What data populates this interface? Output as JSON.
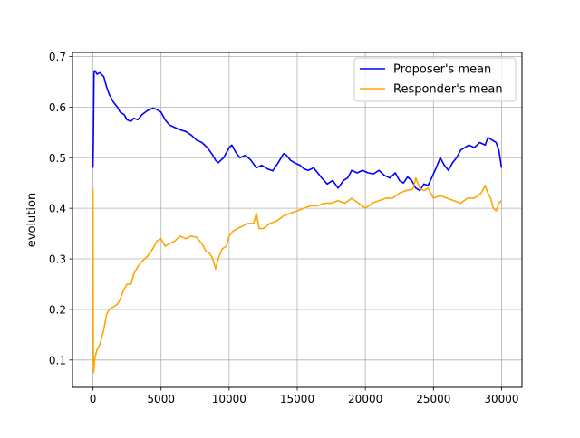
{
  "chart_data": {
    "type": "line",
    "title": "",
    "xlabel": "",
    "ylabel": "evolution",
    "xlim": [
      -1500,
      31500
    ],
    "ylim": [
      0.046,
      0.708
    ],
    "x_ticks": [
      0,
      5000,
      10000,
      15000,
      20000,
      25000,
      30000
    ],
    "x_tick_labels": [
      "0",
      "5000",
      "10000",
      "15000",
      "20000",
      "25000",
      "30000"
    ],
    "y_ticks": [
      0.1,
      0.2,
      0.3,
      0.4,
      0.5,
      0.6,
      0.7
    ],
    "y_tick_labels": [
      "0.1",
      "0.2",
      "0.3",
      "0.4",
      "0.5",
      "0.6",
      "0.7"
    ],
    "grid": true,
    "legend_position": "top-right",
    "series": [
      {
        "name": "Proposer's mean",
        "color": "#0000ff",
        "x": [
          0,
          30,
          80,
          150,
          300,
          500,
          800,
          1000,
          1200,
          1500,
          1800,
          2000,
          2300,
          2500,
          2800,
          3000,
          3300,
          3600,
          4000,
          4400,
          4700,
          5000,
          5300,
          5600,
          6000,
          6400,
          6800,
          7200,
          7600,
          8000,
          8400,
          8800,
          9000,
          9200,
          9600,
          10000,
          10200,
          10500,
          10800,
          11200,
          11600,
          12000,
          12400,
          12800,
          13200,
          13600,
          14000,
          14200,
          14500,
          14800,
          15200,
          15500,
          15800,
          16200,
          16500,
          16800,
          17200,
          17600,
          18000,
          18400,
          18700,
          19000,
          19400,
          19800,
          20200,
          20600,
          21000,
          21400,
          21800,
          22200,
          22500,
          22800,
          23100,
          23400,
          23700,
          24000,
          24300,
          24600,
          24900,
          25200,
          25500,
          25800,
          26100,
          26400,
          26700,
          27000,
          27300,
          27600,
          28000,
          28400,
          28800,
          29000,
          29300,
          29600,
          29800,
          30000
        ],
        "values": [
          0.48,
          0.53,
          0.67,
          0.672,
          0.665,
          0.668,
          0.66,
          0.64,
          0.625,
          0.61,
          0.6,
          0.59,
          0.585,
          0.575,
          0.572,
          0.578,
          0.575,
          0.585,
          0.593,
          0.598,
          0.595,
          0.59,
          0.575,
          0.565,
          0.56,
          0.555,
          0.552,
          0.545,
          0.535,
          0.53,
          0.52,
          0.505,
          0.495,
          0.49,
          0.5,
          0.52,
          0.525,
          0.51,
          0.5,
          0.505,
          0.495,
          0.48,
          0.485,
          0.478,
          0.474,
          0.49,
          0.508,
          0.505,
          0.495,
          0.49,
          0.485,
          0.478,
          0.475,
          0.48,
          0.47,
          0.46,
          0.448,
          0.455,
          0.44,
          0.455,
          0.46,
          0.475,
          0.47,
          0.475,
          0.47,
          0.468,
          0.475,
          0.465,
          0.46,
          0.47,
          0.455,
          0.45,
          0.462,
          0.455,
          0.44,
          0.435,
          0.448,
          0.445,
          0.462,
          0.48,
          0.5,
          0.485,
          0.475,
          0.49,
          0.5,
          0.515,
          0.52,
          0.525,
          0.52,
          0.53,
          0.525,
          0.54,
          0.535,
          0.53,
          0.515,
          0.48
        ]
      },
      {
        "name": "Responder's mean",
        "color": "#ffa500",
        "x": [
          0,
          10,
          30,
          60,
          120,
          200,
          300,
          500,
          800,
          1000,
          1200,
          1500,
          1800,
          2000,
          2200,
          2500,
          2800,
          3000,
          3300,
          3600,
          4000,
          4400,
          4700,
          5000,
          5300,
          5600,
          6000,
          6400,
          6800,
          7200,
          7600,
          8000,
          8300,
          8600,
          8800,
          9000,
          9200,
          9500,
          9800,
          10000,
          10300,
          10600,
          11000,
          11400,
          11800,
          12000,
          12200,
          12500,
          13000,
          13500,
          14000,
          14500,
          15000,
          15500,
          16000,
          16500,
          17000,
          17500,
          18000,
          18500,
          19000,
          19500,
          20000,
          20500,
          21000,
          21500,
          22000,
          22500,
          23000,
          23500,
          23700,
          24000,
          24300,
          24600,
          25000,
          25500,
          26000,
          26500,
          27000,
          27500,
          28000,
          28500,
          28800,
          29000,
          29200,
          29400,
          29600,
          29800,
          30000
        ],
        "values": [
          0.44,
          0.33,
          0.09,
          0.075,
          0.1,
          0.11,
          0.12,
          0.13,
          0.16,
          0.19,
          0.2,
          0.205,
          0.21,
          0.22,
          0.235,
          0.25,
          0.25,
          0.27,
          0.285,
          0.295,
          0.305,
          0.32,
          0.335,
          0.34,
          0.325,
          0.33,
          0.335,
          0.345,
          0.34,
          0.345,
          0.343,
          0.33,
          0.315,
          0.31,
          0.3,
          0.28,
          0.3,
          0.32,
          0.325,
          0.345,
          0.355,
          0.36,
          0.365,
          0.37,
          0.37,
          0.39,
          0.36,
          0.36,
          0.37,
          0.375,
          0.385,
          0.39,
          0.395,
          0.4,
          0.405,
          0.405,
          0.41,
          0.41,
          0.415,
          0.41,
          0.42,
          0.41,
          0.4,
          0.41,
          0.415,
          0.42,
          0.42,
          0.43,
          0.435,
          0.438,
          0.46,
          0.44,
          0.435,
          0.44,
          0.42,
          0.425,
          0.42,
          0.415,
          0.41,
          0.42,
          0.42,
          0.43,
          0.445,
          0.43,
          0.42,
          0.4,
          0.395,
          0.41,
          0.415
        ]
      }
    ]
  }
}
